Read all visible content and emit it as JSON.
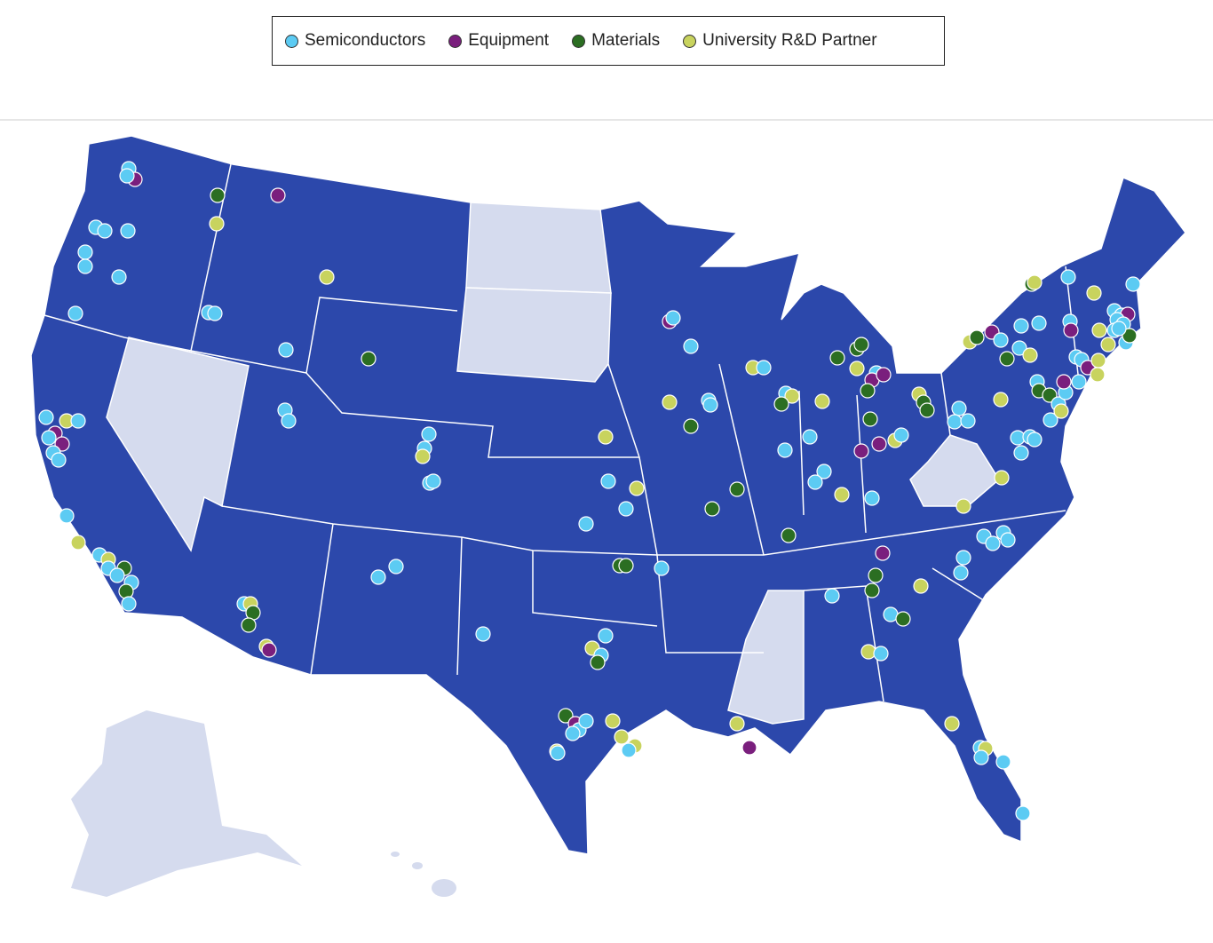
{
  "legend": {
    "items": [
      {
        "label": "Semiconductors",
        "color": "#5ccbf3"
      },
      {
        "label": "Equipment",
        "color": "#7a1f7d"
      },
      {
        "label": "Materials",
        "color": "#2b6e22"
      },
      {
        "label": "University R&D Partner",
        "color": "#c8d35e"
      }
    ]
  }
}
